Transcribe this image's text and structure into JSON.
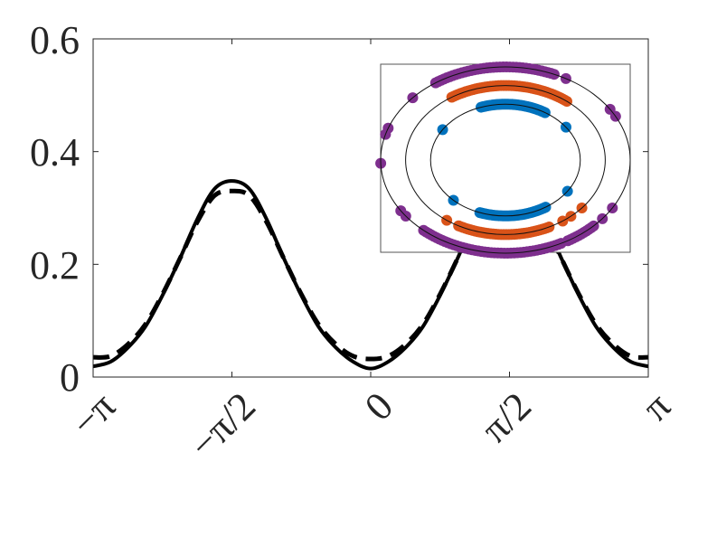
{
  "chart_data": {
    "type": "line",
    "title": "",
    "xlabel": "",
    "ylabel": "",
    "xlim": [
      -3.14159,
      3.14159
    ],
    "ylim": [
      0,
      0.6
    ],
    "grid": false,
    "x_ticks": [
      -3.14159,
      -1.5708,
      0,
      1.5708,
      3.14159
    ],
    "x_tick_labels": [
      "−π",
      "−π/2",
      "0",
      "π/2",
      "π"
    ],
    "y_ticks": [
      0,
      0.2,
      0.4,
      0.6
    ],
    "y_tick_labels": [
      "0",
      "0.2",
      "0.4",
      "0.6"
    ],
    "x_step": "pi/16",
    "series": [
      {
        "name": "solid",
        "style": "solid",
        "color": "#000000",
        "values": [
          0.019,
          0.027,
          0.052,
          0.089,
          0.145,
          0.21,
          0.28,
          0.334,
          0.348,
          0.334,
          0.28,
          0.21,
          0.145,
          0.089,
          0.052,
          0.027,
          0.015,
          0.027,
          0.052,
          0.089,
          0.145,
          0.21,
          0.28,
          0.334,
          0.348,
          0.334,
          0.28,
          0.21,
          0.145,
          0.089,
          0.052,
          0.027,
          0.019
        ]
      },
      {
        "name": "dashed",
        "style": "dashed",
        "color": "#000000",
        "values": [
          0.035,
          0.037,
          0.058,
          0.093,
          0.147,
          0.21,
          0.275,
          0.322,
          0.33,
          0.322,
          0.275,
          0.21,
          0.147,
          0.093,
          0.058,
          0.037,
          0.032,
          0.037,
          0.058,
          0.093,
          0.147,
          0.21,
          0.275,
          0.322,
          0.33,
          0.322,
          0.275,
          0.21,
          0.147,
          0.093,
          0.058,
          0.037,
          0.035
        ]
      }
    ],
    "inset": {
      "type": "scatter",
      "rings": [
        {
          "name": "outer",
          "color": "#7E2F8E",
          "relative_radii": [
            1.0,
            1.0
          ],
          "arcs_deg": [
            [
              67,
              124
            ],
            [
              229,
              297
            ],
            [
              300,
              315
            ]
          ],
          "points_deg": [
            61,
            138,
            160,
            164,
            182,
            28,
            33,
            213,
            217,
            321,
            329
          ]
        },
        {
          "name": "middle",
          "color": "#D95319",
          "relative_radii": [
            0.8,
            0.8
          ],
          "arcs_deg": [
            [
              52,
              123
            ],
            [
              242,
              297
            ]
          ],
          "points_deg": [
            234,
            305,
            311,
            320
          ]
        },
        {
          "name": "inner",
          "color": "#0072BD",
          "relative_radii": [
            0.6,
            0.6
          ],
          "arcs_deg": [
            [
              58,
              109
            ],
            [
              250,
              303
            ]
          ],
          "points_deg": [
            147,
            36,
            226,
            326
          ]
        }
      ]
    }
  }
}
